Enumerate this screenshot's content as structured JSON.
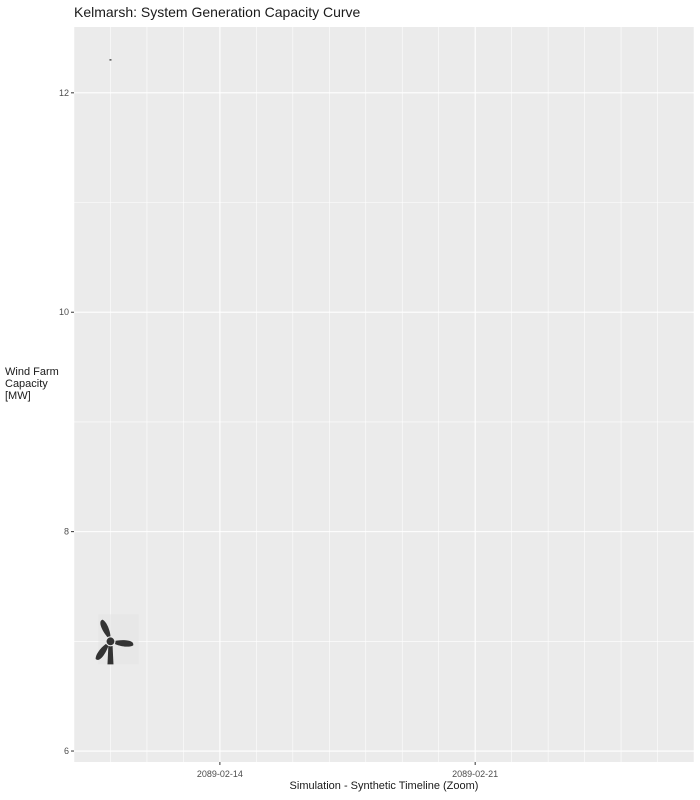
{
  "chart_data": {
    "type": "line",
    "title": "Kelmarsh: System Generation Capacity Curve",
    "xlabel": "Simulation - Synthetic Timeline (Zoom)",
    "ylabel_lines": [
      "Wind Farm",
      "Capacity",
      "[MW]"
    ],
    "x_ticks": [
      "2089-02-14",
      "2089-02-21"
    ],
    "y_ticks": [
      6,
      8,
      10,
      12
    ],
    "ylim": [
      5.9,
      12.6
    ],
    "xlim": [
      "2089-02-10",
      "2089-02-27"
    ],
    "grid": true,
    "series": [
      {
        "values": [
          {
            "x": "2089-02-11",
            "y": 12.3
          }
        ]
      }
    ],
    "marker": {
      "icon": "wind-turbine-icon",
      "x": "2089-02-11",
      "y": 7.0
    },
    "colors": {
      "panel": "#EBEBEB",
      "grid": "#FFFFFF",
      "text": "#1A1A1A",
      "tick": "#4D4D4D",
      "icon": "#333333"
    }
  }
}
